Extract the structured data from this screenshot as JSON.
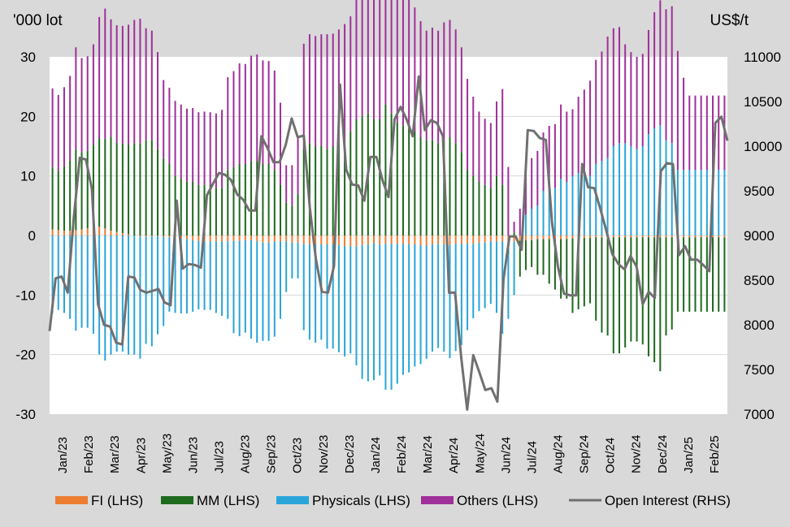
{
  "chart_data": {
    "type": "bar+line",
    "ylabel_left": "'000 lot",
    "ylabel_right": "US$/t",
    "ylim_left": [
      -30,
      30
    ],
    "yticks_left": [
      "30",
      "20",
      "10",
      "0",
      "-10",
      "-20",
      "-30"
    ],
    "ylim_right": [
      7000,
      11000
    ],
    "yticks_right": [
      "11000",
      "10500",
      "10000",
      "9500",
      "9000",
      "8500",
      "8000",
      "7500",
      "7000"
    ],
    "grid": true,
    "legend_position": "bottom",
    "x_labels": [
      "Jan/23",
      "Feb/23",
      "Mar/23",
      "Apr/23",
      "May/23",
      "Jun/23",
      "Jul/23",
      "Aug/23",
      "Sep/23",
      "Oct/23",
      "Nov/23",
      "Dec/23",
      "Jan/24",
      "Feb/24",
      "Mar/24",
      "Apr/24",
      "May/24",
      "Jun/24",
      "Jul/24",
      "Aug/24",
      "Sep/24",
      "Oct/24",
      "Nov/24",
      "Dec/24",
      "Jan/25",
      "Feb/25"
    ],
    "legend": [
      {
        "name": "FI (LHS)",
        "color": "#ed7d31",
        "kind": "bar"
      },
      {
        "name": "MM (LHS)",
        "color": "#1e6a1e",
        "kind": "bar"
      },
      {
        "name": "Physicals (LHS)",
        "color": "#2aa5d9",
        "kind": "bar"
      },
      {
        "name": "Others (LHS)",
        "color": "#a0309a",
        "kind": "bar"
      },
      {
        "name": "Open Interest (RHS)",
        "color": "#707070",
        "kind": "line"
      }
    ],
    "series": [
      {
        "name": "FI (LHS)",
        "values": [
          1.0,
          0.9,
          0.8,
          0.8,
          0.9,
          1.0,
          1.2,
          1.4,
          1.5,
          1.2,
          0.8,
          0.6,
          0.4,
          0.2,
          0.0,
          -0.2,
          -0.2,
          -0.1,
          -0.1,
          -0.2,
          -0.3,
          -0.5,
          -0.6,
          -0.6,
          -0.8,
          -0.9,
          -1.0,
          -1.0,
          -1.0,
          -1.0,
          -1.0,
          -0.9,
          -0.9,
          -0.8,
          -0.8,
          -1.0,
          -1.2,
          -1.2,
          -1.0,
          -1.0,
          -1.0,
          -1.2,
          -1.2,
          -1.4,
          -1.5,
          -1.5,
          -1.5,
          -1.5,
          -1.5,
          -1.6,
          -1.8,
          -1.8,
          -1.8,
          -1.6,
          -1.5,
          -1.3,
          -1.5,
          -1.4,
          -1.4,
          -1.4,
          -1.4,
          -1.5,
          -1.5,
          -1.6,
          -1.7,
          -1.5,
          -1.4,
          -1.5,
          -1.6,
          -1.4,
          -1.4,
          -1.4,
          -1.4,
          -1.2,
          -1.2,
          -1.0,
          -1.0,
          -1.0,
          -1.0,
          -1.0,
          -0.9,
          -0.8,
          -0.8,
          -0.6,
          -0.6,
          -0.6,
          -0.6,
          -0.6,
          -0.6,
          -0.5,
          -0.4,
          -0.4,
          -0.4,
          -0.3,
          -0.3,
          -0.3,
          -0.3,
          -0.3,
          -0.3,
          -0.3,
          -0.3,
          -0.3,
          -0.3,
          -0.3,
          -0.3,
          -0.3,
          -0.3,
          -0.3,
          -0.3,
          -0.3,
          -0.3,
          -0.3,
          -0.3,
          -0.3,
          -0.3,
          -0.3
        ]
      },
      {
        "name": "MM (LHS)",
        "values": [
          10.5,
          10.0,
          10.8,
          11.8,
          13.5,
          13.0,
          13.0,
          13.8,
          14.8,
          15.0,
          15.8,
          15.0,
          15.0,
          15.0,
          15.5,
          15.5,
          16.0,
          16.0,
          14.5,
          13.0,
          12.0,
          10.0,
          9.5,
          9.0,
          9.0,
          8.5,
          8.5,
          8.5,
          8.0,
          8.0,
          11.0,
          11.5,
          12.0,
          12.0,
          12.5,
          12.5,
          12.0,
          12.0,
          11.0,
          8.5,
          5.5,
          5.0,
          7.0,
          14.5,
          15.5,
          15.0,
          15.0,
          14.5,
          15.0,
          15.5,
          16.0,
          17.5,
          19.5,
          20.0,
          20.5,
          19.5,
          19.5,
          22.0,
          20.5,
          19.0,
          18.5,
          18.0,
          17.5,
          16.5,
          16.0,
          16.0,
          15.5,
          16.0,
          16.5,
          15.5,
          14.0,
          11.0,
          10.0,
          9.0,
          8.5,
          8.0,
          10.0,
          8.5,
          -2.0,
          0.5,
          -6.0,
          -5.0,
          -4.5,
          -6.0,
          -6.0,
          -7.5,
          -8.5,
          -10.0,
          -10.0,
          -12.5,
          -12.0,
          -11.5,
          -11.0,
          -14.0,
          -16.0,
          -16.5,
          -19.5,
          -19.5,
          -18.5,
          -17.5,
          -17.5,
          -18.0,
          -20.0,
          -21.0,
          -22.5,
          -16.5,
          -15.5,
          -12.5,
          -12.5,
          -12.5,
          -12.5,
          -12.5,
          -12.5,
          -12.5,
          -12.5,
          -12.5
        ]
      },
      {
        "name": "Physicals (LHS)",
        "values": [
          -13.0,
          -12.5,
          -13.0,
          -14.0,
          -16.0,
          -15.5,
          -15.5,
          -16.5,
          -20.0,
          -21.0,
          -20.0,
          -19.5,
          -19.5,
          -20.0,
          -20.0,
          -20.5,
          -18.0,
          -18.5,
          -16.5,
          -15.0,
          -12.5,
          -12.5,
          -12.5,
          -12.5,
          -12.0,
          -11.5,
          -11.5,
          -11.5,
          -12.0,
          -12.5,
          -13.0,
          -15.5,
          -16.0,
          -15.5,
          -16.5,
          -17.0,
          -16.5,
          -16.5,
          -16.0,
          -13.0,
          -8.5,
          -6.0,
          -6.0,
          -14.5,
          -16.0,
          -16.5,
          -16.0,
          -17.5,
          -17.5,
          -18.0,
          -18.5,
          -18.0,
          -20.0,
          -22.5,
          -23.0,
          -23.0,
          -22.0,
          -24.5,
          -24.5,
          -23.5,
          -22.0,
          -21.5,
          -20.5,
          -20.0,
          -19.0,
          -18.0,
          -17.5,
          -18.0,
          -19.0,
          -18.0,
          -17.0,
          -14.5,
          -12.5,
          -11.5,
          -11.0,
          -10.5,
          -12.0,
          -15.5,
          -11.0,
          -9.0,
          0.0,
          3.5,
          4.5,
          5.0,
          7.5,
          8.5,
          8.0,
          9.5,
          9.0,
          10.0,
          10.5,
          10.0,
          10.0,
          12.0,
          12.5,
          13.0,
          15.0,
          15.5,
          15.5,
          15.0,
          14.5,
          15.0,
          17.0,
          18.0,
          18.5,
          16.0,
          15.5,
          11.0,
          11.0,
          11.0,
          11.0,
          11.0,
          11.0,
          11.0,
          11.0,
          11.0
        ]
      },
      {
        "name": "Others (LHS)",
        "values": [
          13.2,
          12.7,
          13.3,
          14.2,
          17.2,
          15.8,
          15.9,
          16.9,
          20.4,
          21.9,
          19.7,
          19.7,
          19.8,
          20.2,
          20.7,
          20.9,
          18.8,
          18.4,
          16.3,
          13.1,
          12.8,
          12.6,
          12.5,
          12.3,
          12.4,
          12.2,
          12.3,
          12.2,
          12.5,
          13.1,
          15.6,
          16.1,
          16.9,
          16.8,
          17.7,
          17.9,
          17.4,
          17.3,
          16.7,
          13.8,
          6.3,
          6.8,
          9.5,
          17.7,
          18.3,
          18.5,
          18.8,
          19.3,
          18.9,
          19.1,
          19.5,
          19.3,
          21.9,
          23.9,
          24.3,
          24.1,
          23.4,
          25.7,
          25.7,
          23.6,
          22.3,
          21.8,
          20.8,
          19.5,
          18.4,
          18.9,
          18.9,
          19.8,
          19.7,
          19.1,
          17.6,
          15.3,
          13.3,
          11.8,
          11.1,
          10.9,
          12.5,
          16.1,
          11.5,
          1.8,
          4.5,
          7.5,
          8.5,
          9.2,
          9.8,
          9.9,
          10.7,
          12.5,
          11.8,
          11.2,
          12.8,
          14.5,
          16.0,
          17.5,
          18.4,
          20.4,
          19.8,
          19.5,
          16.6,
          15.8,
          15.5,
          15.5,
          17.5,
          19.5,
          21.0,
          22.0,
          23.0,
          20.0,
          15.5,
          12.5,
          12.5,
          12.5,
          12.5,
          12.5,
          12.5,
          12.5
        ]
      },
      {
        "name": "Open Interest (RHS)",
        "values": [
          7930,
          8520,
          8540,
          8360,
          9200,
          9870,
          9850,
          9520,
          8230,
          8000,
          7980,
          7800,
          7780,
          8540,
          8530,
          8390,
          8360,
          8380,
          8400,
          8250,
          8220,
          9390,
          8630,
          8680,
          8670,
          8640,
          9450,
          9580,
          9700,
          9680,
          9620,
          9460,
          9400,
          9280,
          9280,
          10110,
          9980,
          9820,
          9820,
          10010,
          10310,
          10100,
          10120,
          9310,
          8740,
          8370,
          8360,
          8660,
          10690,
          9740,
          9570,
          9560,
          9390,
          9880,
          9880,
          9620,
          9430,
          10300,
          10440,
          10300,
          10110,
          10780,
          10180,
          10290,
          10260,
          10110,
          8360,
          8360,
          7640,
          7050,
          7660,
          7470,
          7270,
          7290,
          7140,
          8510,
          8990,
          8990,
          8840,
          10180,
          10170,
          10090,
          10070,
          9150,
          8650,
          8350,
          8330,
          8330,
          9800,
          9540,
          9530,
          9300,
          9050,
          8790,
          8680,
          8620,
          8770,
          8650,
          8230,
          8370,
          8300,
          9720,
          9810,
          9800,
          8780,
          8880,
          8730,
          8730,
          8670,
          8600,
          10260,
          10330,
          10060
        ]
      }
    ]
  }
}
